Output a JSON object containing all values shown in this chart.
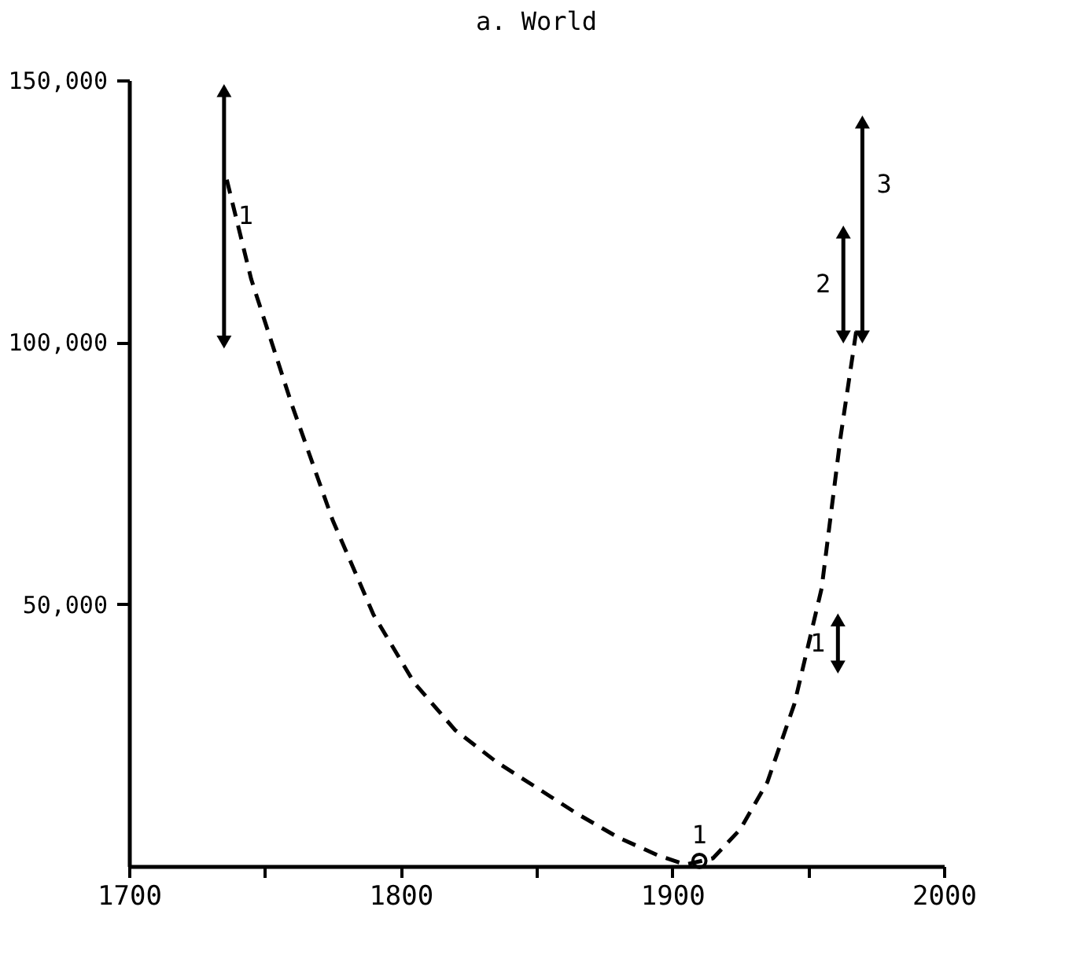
{
  "chart_data": {
    "type": "line",
    "title": "a.  World",
    "xlim": [
      1700,
      2000
    ],
    "xticks": [
      1700,
      {
        "value": 1750,
        "label": null
      },
      1800,
      {
        "value": 1850,
        "label": null
      },
      1900,
      {
        "value": 1950,
        "label": null
      },
      2000
    ],
    "ylim": [
      0,
      150000
    ],
    "yticks": [
      {
        "value": 50000,
        "label": "50,000"
      },
      {
        "value": 100000,
        "label": "100,000"
      },
      {
        "value": 150000,
        "label": "150,000"
      }
    ],
    "annotations": [
      {
        "text": "1",
        "x": 1735,
        "y": 124000
      },
      {
        "text": "1",
        "x": 1961,
        "y": 42500
      },
      {
        "text": "2",
        "x": 1963,
        "y": 111000
      },
      {
        "text": "3",
        "x": 1970,
        "y": 130000
      },
      {
        "text": "1",
        "x": 1910,
        "y": 1000
      }
    ],
    "series": [
      {
        "color": "#000000",
        "line_style": "dashed",
        "x": [
          1736,
          1745,
          1760,
          1775,
          1790,
          1805,
          1820,
          1835,
          1850,
          1865,
          1880,
          1895,
          1905,
          1915,
          1925,
          1935,
          1945,
          1955,
          1962,
          1968
        ],
        "values": [
          131000,
          112000,
          88000,
          66000,
          48000,
          35000,
          26000,
          20000,
          15000,
          10000,
          5500,
          2000,
          300,
          1500,
          7000,
          16000,
          31000,
          53000,
          82000,
          103000
        ]
      },
      {
        "type": "scatter",
        "color": "#000000",
        "marker": "triangle",
        "x": [
          1735,
          1961,
          1963,
          1970
        ],
        "values": [
          148000,
          47000,
          121000,
          142000
        ],
        "errors": [
          [
            100000,
            148000
          ],
          [
            38000,
            47000
          ],
          [
            101000,
            121000
          ],
          [
            101000,
            142000
          ]
        ]
      },
      {
        "type": "scatter",
        "color": "#000000",
        "marker": "triangle",
        "x": [
          1735,
          1961,
          1963,
          1970
        ],
        "values": [
          100000,
          38000,
          101000,
          101000
        ]
      },
      {
        "type": "scatter",
        "color": "#000000",
        "marker": "circle",
        "x": [
          1910
        ],
        "values": [
          1000
        ]
      }
    ]
  }
}
